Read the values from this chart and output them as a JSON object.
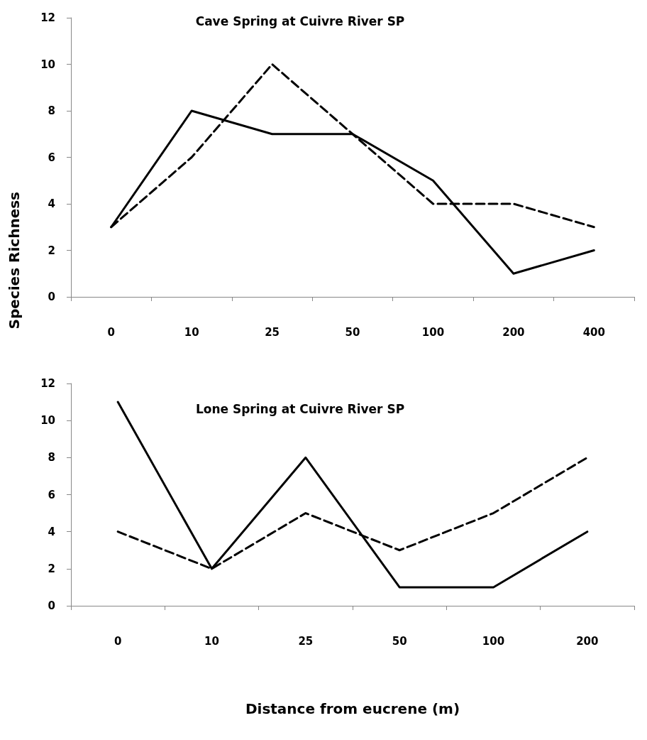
{
  "chart_data": [
    {
      "type": "line",
      "title": "Cave Spring at Cuivre River SP",
      "ylabel": "Species Richness",
      "categories": [
        "0",
        "10",
        "25",
        "50",
        "100",
        "200",
        "400"
      ],
      "series": [
        {
          "color": "#000000",
          "line_style": "solid",
          "values": [
            3,
            8,
            7,
            7,
            5,
            1,
            2
          ]
        },
        {
          "color": "#000000",
          "line_style": "dashed",
          "values": [
            3,
            6,
            10,
            7,
            4,
            4,
            3
          ]
        }
      ],
      "ylim": [
        0,
        12
      ],
      "yticks": [
        0,
        2,
        4,
        6,
        8,
        10,
        12
      ],
      "grid": false,
      "marker": "none"
    },
    {
      "type": "line",
      "title": "Lone Spring at Cuivre River SP",
      "xlabel": "Distance from eucrene (m)",
      "categories": [
        "0",
        "10",
        "25",
        "50",
        "100",
        "200"
      ],
      "series": [
        {
          "color": "#000000",
          "line_style": "solid",
          "values": [
            11,
            2,
            8,
            1,
            1,
            4
          ]
        },
        {
          "color": "#000000",
          "line_style": "dashed",
          "values": [
            4,
            2,
            5,
            3,
            5,
            8
          ]
        }
      ],
      "ylim": [
        0,
        12
      ],
      "yticks": [
        0,
        2,
        4,
        6,
        8,
        10,
        12
      ],
      "grid": false,
      "marker": "none"
    }
  ]
}
